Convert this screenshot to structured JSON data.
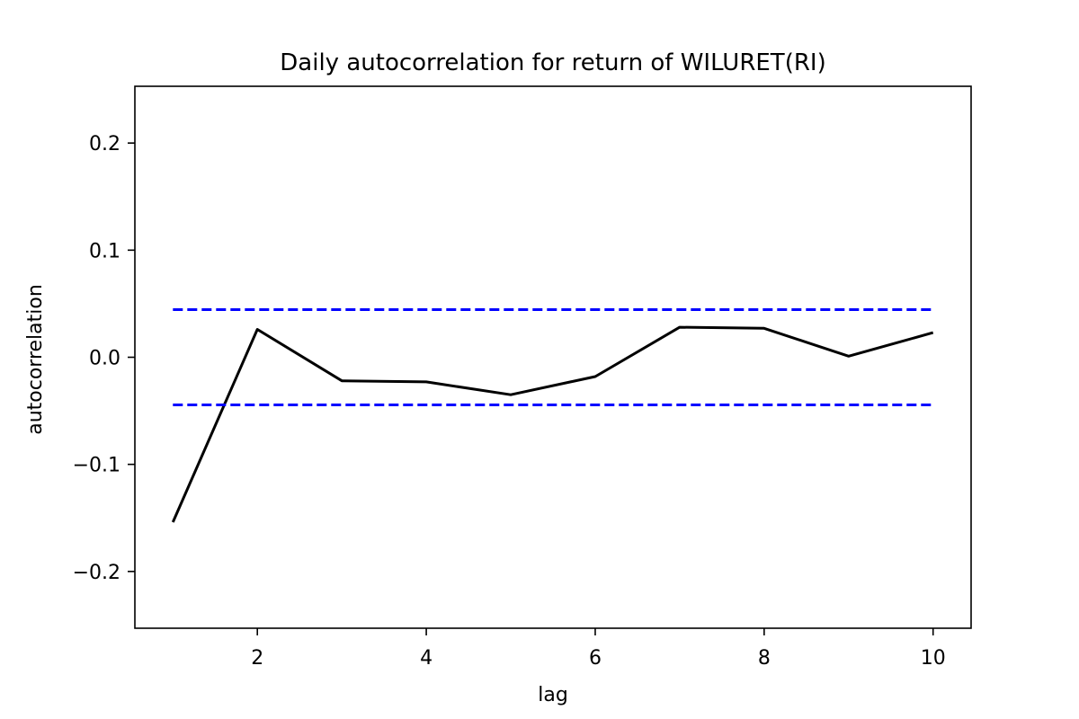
{
  "chart_data": {
    "type": "line",
    "title": "Daily autocorrelation for  return of WILURET(RI)",
    "xlabel": "lag",
    "ylabel": "autocorrelation",
    "xlim": [
      0.55,
      10.45
    ],
    "ylim": [
      -0.253,
      0.253
    ],
    "xticks": [
      2,
      4,
      6,
      8,
      10
    ],
    "xtick_labels": [
      "2",
      "4",
      "6",
      "8",
      "10"
    ],
    "yticks": [
      -0.2,
      -0.1,
      0.0,
      0.1,
      0.2
    ],
    "ytick_labels": [
      "−0.2",
      "−0.1",
      "0.0",
      "0.1",
      "0.2"
    ],
    "grid": false,
    "series": [
      {
        "x": [
          1,
          2,
          3,
          4,
          5,
          6,
          7,
          8,
          9,
          10
        ],
        "values": [
          -0.154,
          0.026,
          -0.022,
          -0.023,
          -0.035,
          -0.018,
          0.028,
          0.027,
          0.001,
          0.023
        ],
        "color": "#000000",
        "style": "solid"
      },
      {
        "x": [
          1,
          10
        ],
        "values": [
          0.0445,
          0.0445
        ],
        "color": "#0000ff",
        "style": "dashed"
      },
      {
        "x": [
          1,
          10
        ],
        "values": [
          -0.0445,
          -0.0445
        ],
        "color": "#0000ff",
        "style": "dashed"
      }
    ]
  }
}
